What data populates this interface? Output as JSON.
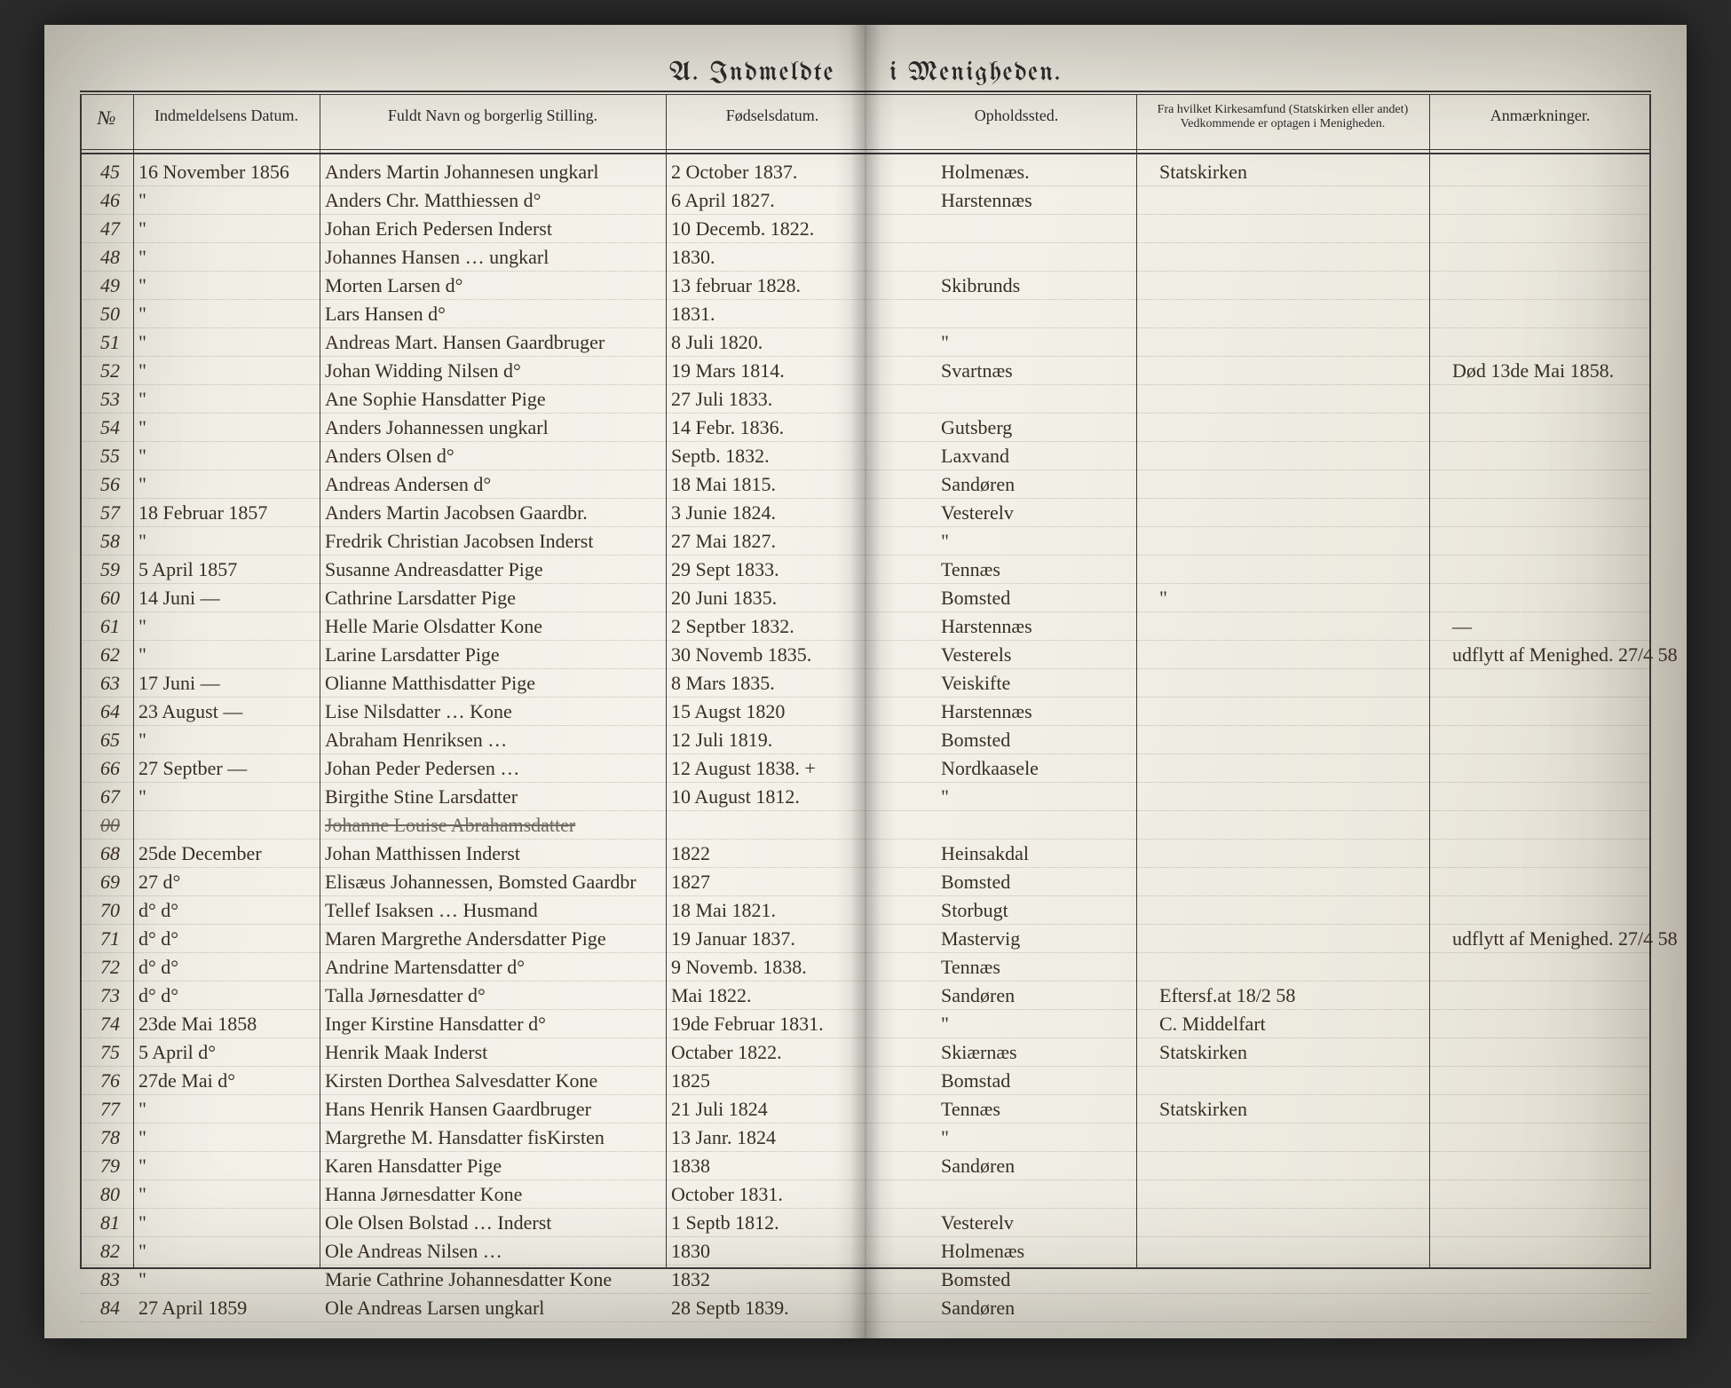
{
  "title_left": "A.  Indmeldte",
  "title_right": "i  Menigheden.",
  "colHeads": {
    "no": "№",
    "date": "Indmeldelsens Datum.",
    "name": "Fuldt Navn og borgerlig Stilling.",
    "birth": "Fødselsdatum.",
    "residence": "Opholdssted.",
    "from": "Fra hvilket Kirkesamfund (Statskirken eller andet)\nVedkommende er optagen i Menigheden.",
    "remarks": "Anmærkninger."
  },
  "rows": [
    {
      "no": "45",
      "date": "16 November 1856",
      "name": "Anders Martin Johannesen  ungkarl",
      "birth": "2 October 1837.",
      "res": "Holmenæs.",
      "from": "Statskirken",
      "rem": ""
    },
    {
      "no": "46",
      "date": "\"",
      "name": "Anders Chr. Matthiessen   d°",
      "birth": "6 April 1827.",
      "res": "Harstennæs",
      "from": "",
      "rem": ""
    },
    {
      "no": "47",
      "date": "\"",
      "name": "Johan Erich Pedersen   Inderst",
      "birth": "10 Decemb. 1822.",
      "res": "",
      "from": "",
      "rem": ""
    },
    {
      "no": "48",
      "date": "\"",
      "name": "Johannes Hansen … ungkarl",
      "birth": "1830.",
      "res": "",
      "from": "",
      "rem": ""
    },
    {
      "no": "49",
      "date": "\"",
      "name": "Morten Larsen   d°",
      "birth": "13 februar 1828.",
      "res": "Skibrunds",
      "from": "",
      "rem": ""
    },
    {
      "no": "50",
      "date": "\"",
      "name": "Lars Hansen   d°",
      "birth": "1831.",
      "res": "",
      "from": "",
      "rem": ""
    },
    {
      "no": "51",
      "date": "\"",
      "name": "Andreas Mart. Hansen  Gaardbruger",
      "birth": "8 Juli 1820.",
      "res": "\"",
      "from": "",
      "rem": ""
    },
    {
      "no": "52",
      "date": "\"",
      "name": "Johan Widding Nilsen   d°",
      "birth": "19 Mars 1814.",
      "res": "Svartnæs",
      "from": "",
      "rem": "Død 13de Mai 1858."
    },
    {
      "no": "53",
      "date": "\"",
      "name": "Ane Sophie Hansdatter   Pige",
      "birth": "27 Juli 1833.",
      "res": "",
      "from": "",
      "rem": ""
    },
    {
      "no": "54",
      "date": "\"",
      "name": "Anders Johannessen   ungkarl",
      "birth": "14 Febr. 1836.",
      "res": "Gutsberg",
      "from": "",
      "rem": ""
    },
    {
      "no": "55",
      "date": "\"",
      "name": "Anders Olsen   d°",
      "birth": "Septb. 1832.",
      "res": "Laxvand",
      "from": "",
      "rem": ""
    },
    {
      "no": "56",
      "date": "\"",
      "name": "Andreas Andersen   d°",
      "birth": "18 Mai 1815.",
      "res": "Sandøren",
      "from": "",
      "rem": ""
    },
    {
      "no": "57",
      "date": "18 Februar 1857",
      "name": "Anders Martin Jacobsen Gaardbr.",
      "birth": "3 Junie 1824.",
      "res": "Vesterelv",
      "from": "",
      "rem": ""
    },
    {
      "no": "58",
      "date": "\"",
      "name": "Fredrik Christian Jacobsen Inderst",
      "birth": "27 Mai 1827.",
      "res": "\"",
      "from": "",
      "rem": ""
    },
    {
      "no": "59",
      "date": "5 April 1857",
      "name": "Susanne Andreasdatter  Pige",
      "birth": "29 Sept 1833.",
      "res": "Tennæs",
      "from": "",
      "rem": ""
    },
    {
      "no": "60",
      "date": "14 Juni  —",
      "name": "Cathrine Larsdatter  Pige",
      "birth": "20 Juni 1835.",
      "res": "Bomsted",
      "from": "\"",
      "rem": ""
    },
    {
      "no": "61",
      "date": "\"",
      "name": "Helle Marie Olsdatter  Kone",
      "birth": "2 Septber 1832.",
      "res": "Harstennæs",
      "from": "",
      "rem": "—"
    },
    {
      "no": "62",
      "date": "\"",
      "name": "Larine Larsdatter  Pige",
      "birth": "30 Novemb 1835.",
      "res": "Vesterels",
      "from": "",
      "rem": "udflytt af Menighed. 27/4 58"
    },
    {
      "no": "63",
      "date": "17 Juni  —",
      "name": "Olianne Matthisdatter  Pige",
      "birth": "8 Mars 1835.",
      "res": "Veiskifte",
      "from": "",
      "rem": ""
    },
    {
      "no": "64",
      "date": "23 August  —",
      "name": "Lise Nilsdatter … Kone",
      "birth": "15 Augst 1820",
      "res": "Harstennæs",
      "from": "",
      "rem": ""
    },
    {
      "no": "65",
      "date": "\"",
      "name": "Abraham Henriksen …",
      "birth": "12 Juli 1819.",
      "res": "Bomsted",
      "from": "",
      "rem": ""
    },
    {
      "no": "66",
      "date": "27 Septber  —",
      "name": "Johan Peder Pedersen …",
      "birth": "12 August 1838. +",
      "res": "Nordkaasele",
      "from": "",
      "rem": ""
    },
    {
      "no": "67",
      "date": "\"",
      "name": "Birgithe Stine Larsdatter",
      "birth": "10 August 1812.",
      "res": "\"",
      "from": "",
      "rem": ""
    },
    {
      "no": "00",
      "date": "",
      "name": "Johanne Louise Abrahamsdatter",
      "birth": "",
      "res": "",
      "from": "",
      "rem": "",
      "strike": true
    },
    {
      "no": "68",
      "date": "25de December",
      "name": "Johan Matthissen   Inderst",
      "birth": "1822",
      "res": "Heinsakdal",
      "from": "",
      "rem": ""
    },
    {
      "no": "69",
      "date": "27   d°",
      "name": "Elisæus Johannessen, Bomsted Gaardbr",
      "birth": "1827",
      "res": "Bomsted",
      "from": "",
      "rem": ""
    },
    {
      "no": "70",
      "date": "d°   d°",
      "name": "Tellef Isaksen … Husmand",
      "birth": "18 Mai 1821.",
      "res": "Storbugt",
      "from": "",
      "rem": ""
    },
    {
      "no": "71",
      "date": "d°   d°",
      "name": "Maren Margrethe Andersdatter Pige",
      "birth": "19 Januar 1837.",
      "res": "Mastervig",
      "from": "",
      "rem": "udflytt af Menighed. 27/4 58"
    },
    {
      "no": "72",
      "date": "d°   d°",
      "name": "Andrine Martensdatter  d°",
      "birth": "9 Novemb. 1838.",
      "res": "Tennæs",
      "from": "",
      "rem": ""
    },
    {
      "no": "73",
      "date": "d°   d°",
      "name": "Talla Jørnesdatter  d°",
      "birth": "Mai 1822.",
      "res": "Sandøren",
      "from": "Eftersf.at  18/2 58",
      "rem": ""
    },
    {
      "no": "74",
      "date": "23de Mai 1858",
      "name": "Inger Kirstine Hansdatter  d°",
      "birth": "19de Februar 1831.",
      "res": "\"",
      "from": "C. Middelfart",
      "rem": ""
    },
    {
      "no": "75",
      "date": "5 April  d°",
      "name": "Henrik Maak   Inderst",
      "birth": "Octaber 1822.",
      "res": "Skiærnæs",
      "from": "Statskirken",
      "rem": ""
    },
    {
      "no": "76",
      "date": "27de Mai  d°",
      "name": "Kirsten Dorthea Salvesdatter  Kone",
      "birth": "1825",
      "res": "Bomstad",
      "from": "",
      "rem": ""
    },
    {
      "no": "77",
      "date": "\"",
      "name": "Hans Henrik Hansen  Gaardbruger",
      "birth": "21 Juli 1824",
      "res": "Tennæs",
      "from": "Statskirken",
      "rem": ""
    },
    {
      "no": "78",
      "date": "\"",
      "name": "Margrethe M. Hansdatter fisKirsten",
      "birth": "13 Janr. 1824",
      "res": "\"",
      "from": "",
      "rem": ""
    },
    {
      "no": "79",
      "date": "\"",
      "name": "Karen Hansdatter  Pige",
      "birth": "1838",
      "res": "Sandøren",
      "from": "",
      "rem": ""
    },
    {
      "no": "80",
      "date": "\"",
      "name": "Hanna Jørnesdatter  Kone",
      "birth": "October 1831.",
      "res": "",
      "from": "",
      "rem": ""
    },
    {
      "no": "81",
      "date": "\"",
      "name": "Ole Olsen Bolstad … Inderst",
      "birth": "1 Septb 1812.",
      "res": "Vesterelv",
      "from": "",
      "rem": ""
    },
    {
      "no": "82",
      "date": "\"",
      "name": "Ole Andreas Nilsen …",
      "birth": "1830",
      "res": "Holmenæs",
      "from": "",
      "rem": ""
    },
    {
      "no": "83",
      "date": "\"",
      "name": "Marie Cathrine Johannesdatter Kone",
      "birth": "1832",
      "res": "Bomsted",
      "from": "",
      "rem": ""
    },
    {
      "no": "84",
      "date": "27 April 1859",
      "name": "Ole Andreas Larsen  ungkarl",
      "birth": "28 Septb 1839.",
      "res": "Sandøren",
      "from": "",
      "rem": ""
    }
  ]
}
